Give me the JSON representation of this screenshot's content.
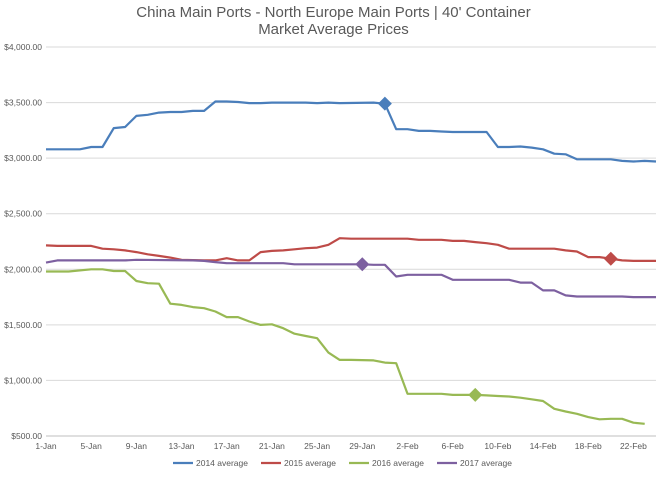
{
  "chart_data": {
    "type": "line",
    "title": "China Main Ports - North Europe Main Ports | 40' Container",
    "subtitle": "Market Average Prices",
    "xlabel": "",
    "ylabel": "",
    "ylim": [
      500,
      4000
    ],
    "y_ticks": [
      500,
      1000,
      1500,
      2000,
      2500,
      3000,
      3500,
      4000
    ],
    "y_tick_labels": [
      "$500.00",
      "$1,000.00",
      "$1,500.00",
      "$2,000.00",
      "$2,500.00",
      "$3,000.00",
      "$3,500.00",
      "$4,000.00"
    ],
    "x_ticks": [
      1,
      5,
      9,
      13,
      17,
      21,
      25,
      29,
      33,
      37,
      41,
      45,
      49,
      53
    ],
    "x_tick_labels": [
      "1-Jan",
      "5-Jan",
      "9-Jan",
      "13-Jan",
      "17-Jan",
      "21-Jan",
      "25-Jan",
      "29-Jan",
      "2-Feb",
      "6-Feb",
      "10-Feb",
      "14-Feb",
      "18-Feb",
      "22-Feb"
    ],
    "grid": true,
    "legend_position": "bottom",
    "series": [
      {
        "name": "2014 average",
        "color": "#4a7ebb",
        "marker_day": 31,
        "points": [
          [
            1,
            3080
          ],
          [
            4,
            3080
          ],
          [
            5,
            3100
          ],
          [
            6,
            3100
          ],
          [
            7,
            3270
          ],
          [
            8,
            3280
          ],
          [
            9,
            3380
          ],
          [
            10,
            3390
          ],
          [
            11,
            3410
          ],
          [
            12,
            3415
          ],
          [
            13,
            3415
          ],
          [
            14,
            3425
          ],
          [
            15,
            3425
          ],
          [
            16,
            3510
          ],
          [
            17,
            3510
          ],
          [
            18,
            3505
          ],
          [
            19,
            3495
          ],
          [
            20,
            3495
          ],
          [
            21,
            3500
          ],
          [
            24,
            3500
          ],
          [
            25,
            3495
          ],
          [
            26,
            3500
          ],
          [
            27,
            3495
          ],
          [
            30,
            3500
          ],
          [
            31,
            3490
          ],
          [
            32,
            3260
          ],
          [
            33,
            3260
          ],
          [
            34,
            3245
          ],
          [
            35,
            3245
          ],
          [
            36,
            3240
          ],
          [
            37,
            3235
          ],
          [
            40,
            3235
          ],
          [
            41,
            3100
          ],
          [
            42,
            3100
          ],
          [
            43,
            3105
          ],
          [
            44,
            3095
          ],
          [
            45,
            3080
          ],
          [
            46,
            3040
          ],
          [
            47,
            3035
          ],
          [
            48,
            2990
          ],
          [
            51,
            2990
          ],
          [
            52,
            2975
          ],
          [
            53,
            2970
          ],
          [
            54,
            2975
          ],
          [
            55,
            2970
          ]
        ]
      },
      {
        "name": "2015 average",
        "color": "#be4b48",
        "marker_day": 51,
        "points": [
          [
            1,
            2215
          ],
          [
            2,
            2210
          ],
          [
            5,
            2210
          ],
          [
            6,
            2185
          ],
          [
            7,
            2180
          ],
          [
            8,
            2170
          ],
          [
            9,
            2155
          ],
          [
            10,
            2135
          ],
          [
            11,
            2120
          ],
          [
            12,
            2105
          ],
          [
            13,
            2085
          ],
          [
            15,
            2080
          ],
          [
            16,
            2080
          ],
          [
            17,
            2100
          ],
          [
            18,
            2080
          ],
          [
            19,
            2080
          ],
          [
            20,
            2155
          ],
          [
            21,
            2165
          ],
          [
            22,
            2170
          ],
          [
            23,
            2180
          ],
          [
            24,
            2190
          ],
          [
            25,
            2195
          ],
          [
            26,
            2220
          ],
          [
            27,
            2280
          ],
          [
            28,
            2275
          ],
          [
            33,
            2275
          ],
          [
            34,
            2265
          ],
          [
            36,
            2265
          ],
          [
            37,
            2255
          ],
          [
            38,
            2255
          ],
          [
            39,
            2245
          ],
          [
            40,
            2235
          ],
          [
            41,
            2220
          ],
          [
            42,
            2185
          ],
          [
            46,
            2185
          ],
          [
            47,
            2170
          ],
          [
            48,
            2160
          ],
          [
            49,
            2110
          ],
          [
            50,
            2110
          ],
          [
            51,
            2095
          ],
          [
            52,
            2080
          ],
          [
            53,
            2075
          ],
          [
            55,
            2075
          ]
        ]
      },
      {
        "name": "2016 average",
        "color": "#98b954",
        "marker_day": 39,
        "points": [
          [
            1,
            1980
          ],
          [
            3,
            1980
          ],
          [
            5,
            2000
          ],
          [
            6,
            2000
          ],
          [
            7,
            1985
          ],
          [
            8,
            1985
          ],
          [
            9,
            1895
          ],
          [
            10,
            1875
          ],
          [
            11,
            1870
          ],
          [
            12,
            1690
          ],
          [
            13,
            1680
          ],
          [
            14,
            1660
          ],
          [
            15,
            1650
          ],
          [
            16,
            1620
          ],
          [
            17,
            1570
          ],
          [
            18,
            1570
          ],
          [
            19,
            1530
          ],
          [
            20,
            1500
          ],
          [
            21,
            1505
          ],
          [
            22,
            1470
          ],
          [
            23,
            1420
          ],
          [
            24,
            1400
          ],
          [
            25,
            1380
          ],
          [
            26,
            1250
          ],
          [
            27,
            1185
          ],
          [
            28,
            1185
          ],
          [
            30,
            1180
          ],
          [
            31,
            1160
          ],
          [
            32,
            1155
          ],
          [
            33,
            880
          ],
          [
            34,
            880
          ],
          [
            35,
            880
          ],
          [
            36,
            880
          ],
          [
            37,
            870
          ],
          [
            38,
            870
          ],
          [
            39,
            870
          ],
          [
            40,
            865
          ],
          [
            41,
            860
          ],
          [
            42,
            855
          ],
          [
            43,
            845
          ],
          [
            44,
            830
          ],
          [
            45,
            815
          ],
          [
            46,
            745
          ],
          [
            47,
            720
          ],
          [
            48,
            700
          ],
          [
            49,
            670
          ],
          [
            50,
            650
          ],
          [
            51,
            655
          ],
          [
            52,
            655
          ],
          [
            53,
            620
          ],
          [
            54,
            610
          ]
        ]
      },
      {
        "name": "2017 average",
        "color": "#7d60a0",
        "marker_day": 29,
        "points": [
          [
            1,
            2060
          ],
          [
            2,
            2080
          ],
          [
            8,
            2080
          ],
          [
            9,
            2085
          ],
          [
            14,
            2080
          ],
          [
            15,
            2075
          ],
          [
            16,
            2065
          ],
          [
            17,
            2055
          ],
          [
            22,
            2055
          ],
          [
            23,
            2045
          ],
          [
            29,
            2045
          ],
          [
            30,
            2040
          ],
          [
            31,
            2040
          ],
          [
            32,
            1935
          ],
          [
            33,
            1950
          ],
          [
            36,
            1950
          ],
          [
            37,
            1905
          ],
          [
            42,
            1905
          ],
          [
            43,
            1880
          ],
          [
            44,
            1880
          ],
          [
            45,
            1810
          ],
          [
            46,
            1810
          ],
          [
            47,
            1765
          ],
          [
            48,
            1755
          ],
          [
            52,
            1755
          ],
          [
            53,
            1750
          ],
          [
            55,
            1750
          ]
        ]
      }
    ]
  }
}
